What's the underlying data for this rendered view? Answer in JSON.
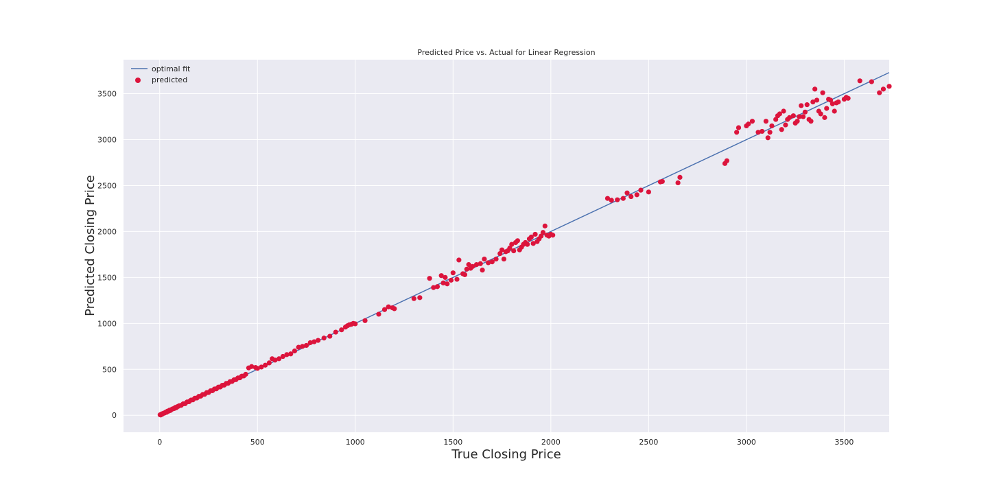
{
  "chart_data": {
    "type": "scatter",
    "title": "Predicted Price vs. Actual for Linear Regression",
    "xlabel": "True Closing Price",
    "ylabel": "Predicted Closing Price",
    "xlim": [
      -185,
      3730
    ],
    "ylim": [
      -185,
      3870
    ],
    "xticks": [
      "0",
      "500",
      "1000",
      "1500",
      "2000",
      "2500",
      "3000",
      "3500"
    ],
    "xtick_values": [
      0,
      500,
      1000,
      1500,
      2000,
      2500,
      3000,
      3500
    ],
    "yticks": [
      "0",
      "500",
      "1000",
      "1500",
      "2000",
      "2500",
      "3000",
      "3500"
    ],
    "ytick_values": [
      0,
      500,
      1000,
      1500,
      2000,
      2500,
      3000,
      3500
    ],
    "grid": true,
    "legend_position": "top-left",
    "colors": {
      "background": "#eaeaf2",
      "grid": "#ffffff",
      "line": "#4c72b0",
      "points": "#dc143c"
    },
    "series": [
      {
        "name": "optimal fit",
        "kind": "line",
        "x": [
          0,
          3730
        ],
        "y": [
          0,
          3730
        ]
      },
      {
        "name": "predicted",
        "kind": "scatter",
        "points": [
          [
            2,
            5
          ],
          [
            5,
            3
          ],
          [
            8,
            12
          ],
          [
            12,
            10
          ],
          [
            15,
            18
          ],
          [
            20,
            22
          ],
          [
            25,
            24
          ],
          [
            30,
            33
          ],
          [
            35,
            32
          ],
          [
            40,
            45
          ],
          [
            45,
            44
          ],
          [
            50,
            55
          ],
          [
            55,
            52
          ],
          [
            60,
            62
          ],
          [
            65,
            68
          ],
          [
            70,
            72
          ],
          [
            75,
            74
          ],
          [
            80,
            85
          ],
          [
            85,
            82
          ],
          [
            90,
            93
          ],
          [
            95,
            97
          ],
          [
            100,
            104
          ],
          [
            110,
            108
          ],
          [
            120,
            124
          ],
          [
            130,
            126
          ],
          [
            140,
            145
          ],
          [
            150,
            148
          ],
          [
            160,
            165
          ],
          [
            170,
            168
          ],
          [
            180,
            186
          ],
          [
            190,
            188
          ],
          [
            200,
            205
          ],
          [
            210,
            208
          ],
          [
            220,
            226
          ],
          [
            230,
            228
          ],
          [
            240,
            246
          ],
          [
            250,
            248
          ],
          [
            260,
            266
          ],
          [
            270,
            268
          ],
          [
            280,
            286
          ],
          [
            290,
            288
          ],
          [
            300,
            306
          ],
          [
            310,
            308
          ],
          [
            320,
            326
          ],
          [
            330,
            328
          ],
          [
            340,
            346
          ],
          [
            350,
            348
          ],
          [
            360,
            366
          ],
          [
            370,
            368
          ],
          [
            380,
            386
          ],
          [
            390,
            388
          ],
          [
            400,
            406
          ],
          [
            410,
            408
          ],
          [
            420,
            426
          ],
          [
            430,
            428
          ],
          [
            440,
            446
          ],
          [
            455,
            515
          ],
          [
            470,
            530
          ],
          [
            490,
            520
          ],
          [
            500,
            510
          ],
          [
            520,
            525
          ],
          [
            540,
            545
          ],
          [
            560,
            570
          ],
          [
            575,
            615
          ],
          [
            590,
            600
          ],
          [
            610,
            615
          ],
          [
            630,
            640
          ],
          [
            650,
            660
          ],
          [
            670,
            668
          ],
          [
            690,
            700
          ],
          [
            710,
            740
          ],
          [
            730,
            750
          ],
          [
            750,
            760
          ],
          [
            770,
            790
          ],
          [
            790,
            800
          ],
          [
            810,
            815
          ],
          [
            840,
            840
          ],
          [
            870,
            860
          ],
          [
            900,
            905
          ],
          [
            930,
            930
          ],
          [
            950,
            960
          ],
          [
            960,
            975
          ],
          [
            970,
            985
          ],
          [
            980,
            990
          ],
          [
            990,
            1000
          ],
          [
            1000,
            995
          ],
          [
            1050,
            1030
          ],
          [
            1120,
            1100
          ],
          [
            1150,
            1150
          ],
          [
            1170,
            1180
          ],
          [
            1190,
            1170
          ],
          [
            1200,
            1160
          ],
          [
            1300,
            1270
          ],
          [
            1330,
            1280
          ],
          [
            1380,
            1490
          ],
          [
            1400,
            1390
          ],
          [
            1420,
            1400
          ],
          [
            1440,
            1520
          ],
          [
            1450,
            1440
          ],
          [
            1460,
            1500
          ],
          [
            1470,
            1430
          ],
          [
            1490,
            1470
          ],
          [
            1500,
            1550
          ],
          [
            1520,
            1480
          ],
          [
            1530,
            1690
          ],
          [
            1550,
            1540
          ],
          [
            1560,
            1530
          ],
          [
            1570,
            1590
          ],
          [
            1580,
            1640
          ],
          [
            1590,
            1600
          ],
          [
            1600,
            1620
          ],
          [
            1620,
            1640
          ],
          [
            1640,
            1650
          ],
          [
            1650,
            1580
          ],
          [
            1660,
            1700
          ],
          [
            1680,
            1660
          ],
          [
            1700,
            1670
          ],
          [
            1720,
            1700
          ],
          [
            1740,
            1760
          ],
          [
            1750,
            1800
          ],
          [
            1760,
            1700
          ],
          [
            1770,
            1780
          ],
          [
            1780,
            1790
          ],
          [
            1790,
            1820
          ],
          [
            1800,
            1860
          ],
          [
            1810,
            1790
          ],
          [
            1820,
            1880
          ],
          [
            1830,
            1900
          ],
          [
            1840,
            1800
          ],
          [
            1850,
            1830
          ],
          [
            1860,
            1860
          ],
          [
            1870,
            1880
          ],
          [
            1880,
            1860
          ],
          [
            1890,
            1920
          ],
          [
            1900,
            1940
          ],
          [
            1910,
            1870
          ],
          [
            1920,
            1970
          ],
          [
            1930,
            1890
          ],
          [
            1940,
            1920
          ],
          [
            1950,
            1950
          ],
          [
            1960,
            1990
          ],
          [
            1970,
            2060
          ],
          [
            1980,
            1960
          ],
          [
            1990,
            1950
          ],
          [
            2000,
            1970
          ],
          [
            2010,
            1960
          ],
          [
            2290,
            2360
          ],
          [
            2310,
            2340
          ],
          [
            2340,
            2345
          ],
          [
            2370,
            2360
          ],
          [
            2390,
            2420
          ],
          [
            2410,
            2380
          ],
          [
            2440,
            2400
          ],
          [
            2460,
            2450
          ],
          [
            2500,
            2430
          ],
          [
            2560,
            2540
          ],
          [
            2570,
            2545
          ],
          [
            2650,
            2530
          ],
          [
            2660,
            2590
          ],
          [
            2890,
            2740
          ],
          [
            2900,
            2770
          ],
          [
            2950,
            3080
          ],
          [
            2960,
            3130
          ],
          [
            3000,
            3150
          ],
          [
            3010,
            3170
          ],
          [
            3030,
            3200
          ],
          [
            3060,
            3080
          ],
          [
            3080,
            3090
          ],
          [
            3100,
            3200
          ],
          [
            3110,
            3020
          ],
          [
            3120,
            3080
          ],
          [
            3130,
            3150
          ],
          [
            3150,
            3220
          ],
          [
            3160,
            3260
          ],
          [
            3170,
            3280
          ],
          [
            3180,
            3110
          ],
          [
            3190,
            3310
          ],
          [
            3200,
            3160
          ],
          [
            3210,
            3220
          ],
          [
            3220,
            3240
          ],
          [
            3240,
            3260
          ],
          [
            3250,
            3180
          ],
          [
            3260,
            3200
          ],
          [
            3270,
            3250
          ],
          [
            3280,
            3370
          ],
          [
            3290,
            3250
          ],
          [
            3300,
            3300
          ],
          [
            3310,
            3380
          ],
          [
            3320,
            3220
          ],
          [
            3330,
            3200
          ],
          [
            3340,
            3410
          ],
          [
            3350,
            3550
          ],
          [
            3360,
            3430
          ],
          [
            3370,
            3310
          ],
          [
            3380,
            3280
          ],
          [
            3390,
            3510
          ],
          [
            3400,
            3240
          ],
          [
            3410,
            3340
          ],
          [
            3420,
            3440
          ],
          [
            3430,
            3430
          ],
          [
            3440,
            3390
          ],
          [
            3450,
            3310
          ],
          [
            3460,
            3400
          ],
          [
            3470,
            3410
          ],
          [
            3500,
            3440
          ],
          [
            3510,
            3460
          ],
          [
            3520,
            3450
          ],
          [
            3580,
            3640
          ],
          [
            3640,
            3630
          ],
          [
            3680,
            3510
          ],
          [
            3700,
            3550
          ],
          [
            3730,
            3580
          ]
        ]
      }
    ]
  }
}
